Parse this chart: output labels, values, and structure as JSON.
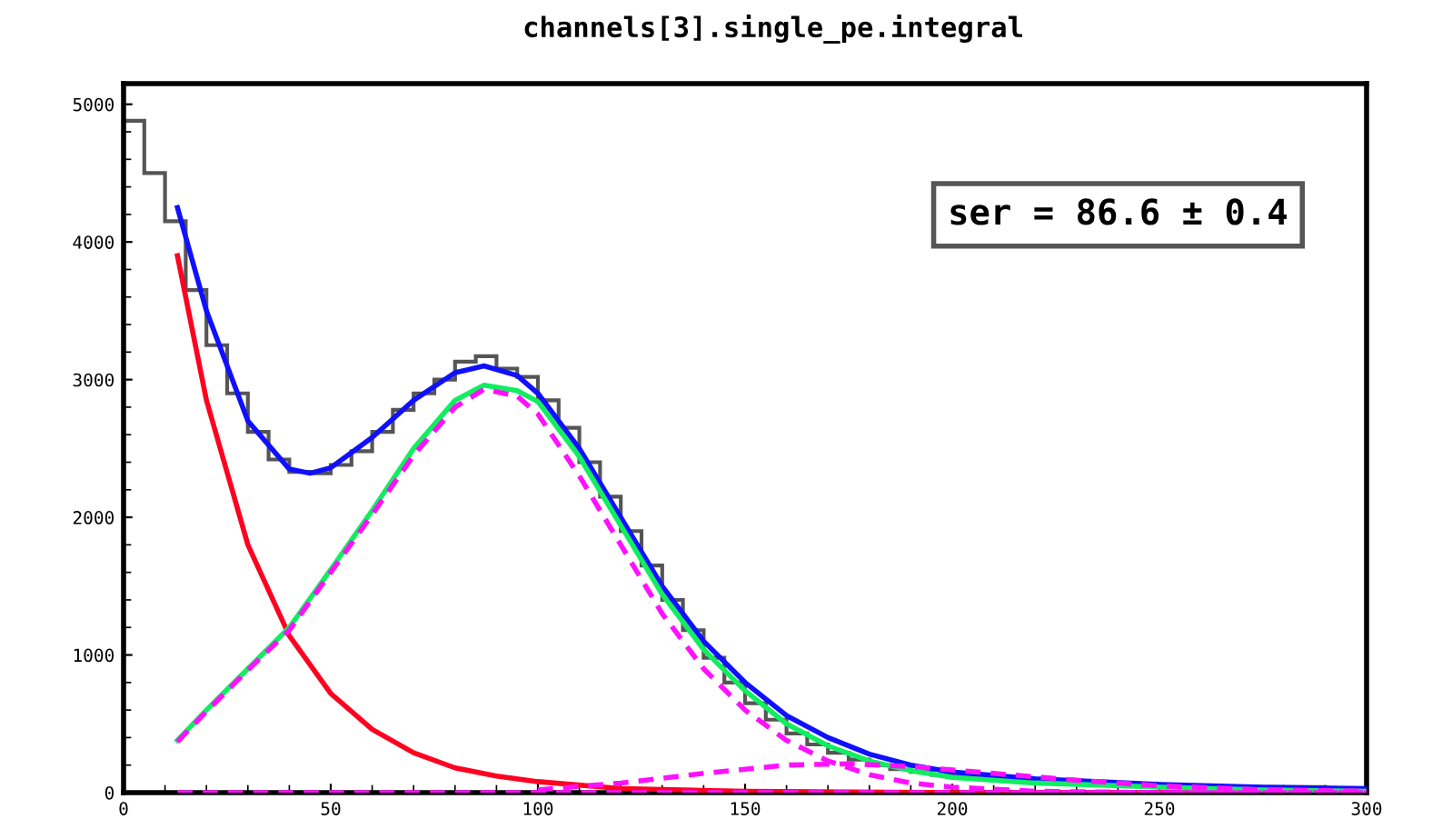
{
  "chart_data": {
    "type": "histogram",
    "title": "channels[3].single_pe.integral",
    "bins": [
      0,
      5,
      10,
      15,
      20,
      25,
      30,
      35,
      40,
      45,
      50,
      55,
      60,
      65,
      70,
      75,
      80,
      85,
      90,
      95,
      100,
      105,
      110,
      115,
      120,
      125,
      130,
      135,
      140,
      145,
      150,
      155,
      160,
      165,
      170,
      175,
      180,
      185,
      190,
      195,
      200,
      205,
      210,
      215,
      220,
      225,
      230,
      235,
      240,
      245,
      250,
      255,
      260,
      265,
      270,
      275,
      280,
      285,
      290,
      295,
      300
    ],
    "values": [
      4880,
      4500,
      4150,
      3650,
      3250,
      2900,
      2620,
      2420,
      2330,
      2320,
      2380,
      2480,
      2620,
      2780,
      2900,
      3000,
      3130,
      3170,
      3080,
      3020,
      2850,
      2650,
      2400,
      2150,
      1900,
      1650,
      1400,
      1180,
      980,
      800,
      650,
      530,
      430,
      350,
      290,
      240,
      200,
      170,
      150,
      130,
      120,
      110,
      100,
      90,
      80,
      80,
      70,
      70,
      60,
      60,
      50,
      50,
      50,
      40,
      40,
      40,
      40,
      40,
      30,
      30
    ],
    "color": "#555555",
    "series": [
      {
        "type": "line",
        "color": "#1010ff",
        "line_style": "solid",
        "x": [
          13,
          20,
          30,
          40,
          45,
          50,
          60,
          70,
          80,
          87,
          95,
          100,
          110,
          120,
          130,
          140,
          150,
          160,
          170,
          180,
          190,
          200,
          220,
          250,
          275,
          300
        ],
        "values": [
          4250,
          3500,
          2700,
          2350,
          2320,
          2360,
          2580,
          2850,
          3050,
          3100,
          3030,
          2900,
          2500,
          2000,
          1500,
          1100,
          800,
          560,
          400,
          280,
          200,
          150,
          100,
          60,
          40,
          30
        ]
      },
      {
        "type": "line",
        "color": "#ff0020",
        "line_style": "solid",
        "x": [
          13,
          20,
          30,
          40,
          50,
          60,
          70,
          80,
          90,
          100,
          120,
          150,
          200,
          250,
          300
        ],
        "values": [
          3900,
          2850,
          1800,
          1140,
          720,
          460,
          290,
          180,
          120,
          80,
          30,
          10,
          0,
          0,
          0
        ]
      },
      {
        "type": "line",
        "color": "#10ee60",
        "line_style": "solid",
        "x": [
          13,
          20,
          30,
          40,
          50,
          60,
          70,
          80,
          87,
          95,
          100,
          110,
          120,
          130,
          140,
          150,
          160,
          170,
          180,
          190,
          200,
          220,
          250,
          275,
          300
        ],
        "values": [
          380,
          600,
          900,
          1200,
          1620,
          2050,
          2500,
          2850,
          2960,
          2920,
          2840,
          2440,
          1940,
          1440,
          1040,
          740,
          500,
          340,
          230,
          160,
          110,
          70,
          40,
          20,
          10
        ]
      },
      {
        "type": "line",
        "color": "#ff10ff",
        "line_style": "dashed",
        "x": [
          13,
          20,
          30,
          40,
          50,
          60,
          70,
          80,
          87,
          95,
          100,
          110,
          120,
          130,
          140,
          150,
          160,
          170,
          180,
          190,
          200,
          220,
          250,
          300
        ],
        "values": [
          370,
          590,
          890,
          1180,
          1600,
          2020,
          2450,
          2800,
          2930,
          2880,
          2750,
          2300,
          1800,
          1300,
          900,
          600,
          380,
          230,
          130,
          70,
          40,
          10,
          0,
          0
        ]
      },
      {
        "type": "line",
        "color": "#ff10ff",
        "line_style": "dashed",
        "x": [
          100,
          120,
          140,
          160,
          175,
          190,
          210,
          230,
          250,
          275,
          300
        ],
        "values": [
          20,
          70,
          140,
          200,
          210,
          190,
          140,
          90,
          50,
          20,
          10
        ]
      },
      {
        "type": "line",
        "color": "#ff10ff",
        "line_style": "dashed",
        "x": [
          13,
          300
        ],
        "values": [
          0,
          0
        ]
      }
    ],
    "xlim": [
      0,
      300
    ],
    "xticks": [
      0,
      50,
      100,
      150,
      200,
      250,
      300
    ],
    "ylim": [
      0,
      5150
    ],
    "yticks": [
      0,
      1000,
      2000,
      3000,
      4000,
      5000
    ],
    "grid": false,
    "legend": false,
    "annotations": [
      "ser = 86.6 ± 0.4"
    ]
  }
}
